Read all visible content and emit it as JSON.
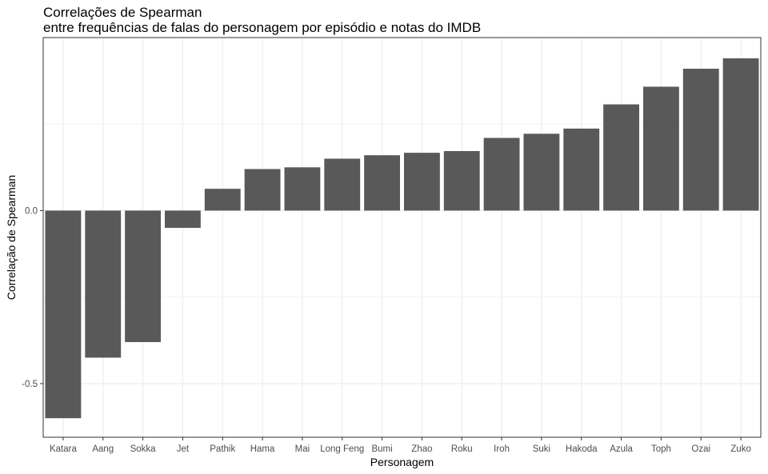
{
  "chart_data": {
    "type": "bar",
    "title": "Correlações de Spearman",
    "subtitle": "entre frequências de falas do personagem por episódio e notas do IMDB",
    "xlabel": "Personagem",
    "ylabel": "Correlação de Spearman",
    "categories": [
      "Katara",
      "Aang",
      "Sokka",
      "Jet",
      "Pathik",
      "Hama",
      "Mai",
      "Long Feng",
      "Bumi",
      "Zhao",
      "Roku",
      "Iroh",
      "Suki",
      "Hakoda",
      "Azula",
      "Toph",
      "Ozai",
      "Zuko"
    ],
    "values": [
      -0.6,
      -0.425,
      -0.38,
      -0.05,
      0.063,
      0.12,
      0.125,
      0.15,
      0.16,
      0.167,
      0.172,
      0.21,
      0.222,
      0.237,
      0.307,
      0.358,
      0.41,
      0.44
    ],
    "ylim": [
      -0.655,
      0.5
    ],
    "yticks": [
      -0.5,
      0.0
    ],
    "ytick_labels": [
      "-0.5",
      "0.0"
    ],
    "grid": true,
    "bar_color": "#595959",
    "grid_color": "#ebebeb",
    "panel_border_color": "#333333"
  }
}
